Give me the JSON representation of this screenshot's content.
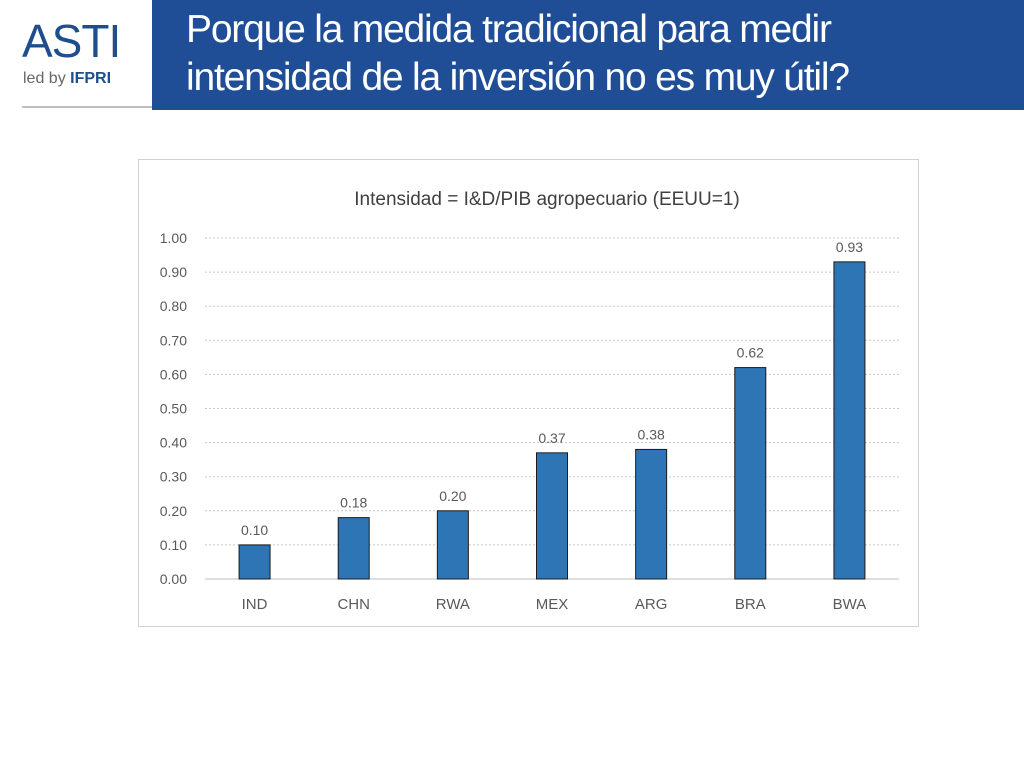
{
  "header": {
    "logo_text": "ASTI",
    "logo_sub_prefix": "led by",
    "logo_sub_brand": "IFPRI",
    "title": "Porque la medida tradicional para medir intensidad de la inversión no es muy útil?"
  },
  "colors": {
    "header_band": "#1f4e97",
    "bar_fill": "#2e75b6",
    "logo": "#1f4e8c"
  },
  "chart_data": {
    "type": "bar",
    "title": "Intensidad = I&D/PIB agropecuario (EEUU=1)",
    "categories": [
      "IND",
      "CHN",
      "RWA",
      "MEX",
      "ARG",
      "BRA",
      "BWA"
    ],
    "values": [
      0.1,
      0.18,
      0.2,
      0.37,
      0.38,
      0.62,
      0.93
    ],
    "value_labels": [
      "0.10",
      "0.18",
      "0.20",
      "0.37",
      "0.38",
      "0.62",
      "0.93"
    ],
    "yticks": [
      "0.00",
      "0.10",
      "0.20",
      "0.30",
      "0.40",
      "0.50",
      "0.60",
      "0.70",
      "0.80",
      "0.90",
      "1.00"
    ],
    "ylim": [
      0,
      1
    ],
    "xlabel": "",
    "ylabel": "",
    "grid": true,
    "legend": "none"
  }
}
